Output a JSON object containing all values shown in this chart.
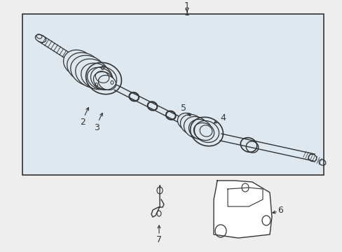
{
  "bg_color": "#eeeeee",
  "box_bg": "#dde8f0",
  "line_color": "#333333",
  "fig_w": 4.89,
  "fig_h": 3.6,
  "dpi": 100,
  "label_fontsize": 9
}
